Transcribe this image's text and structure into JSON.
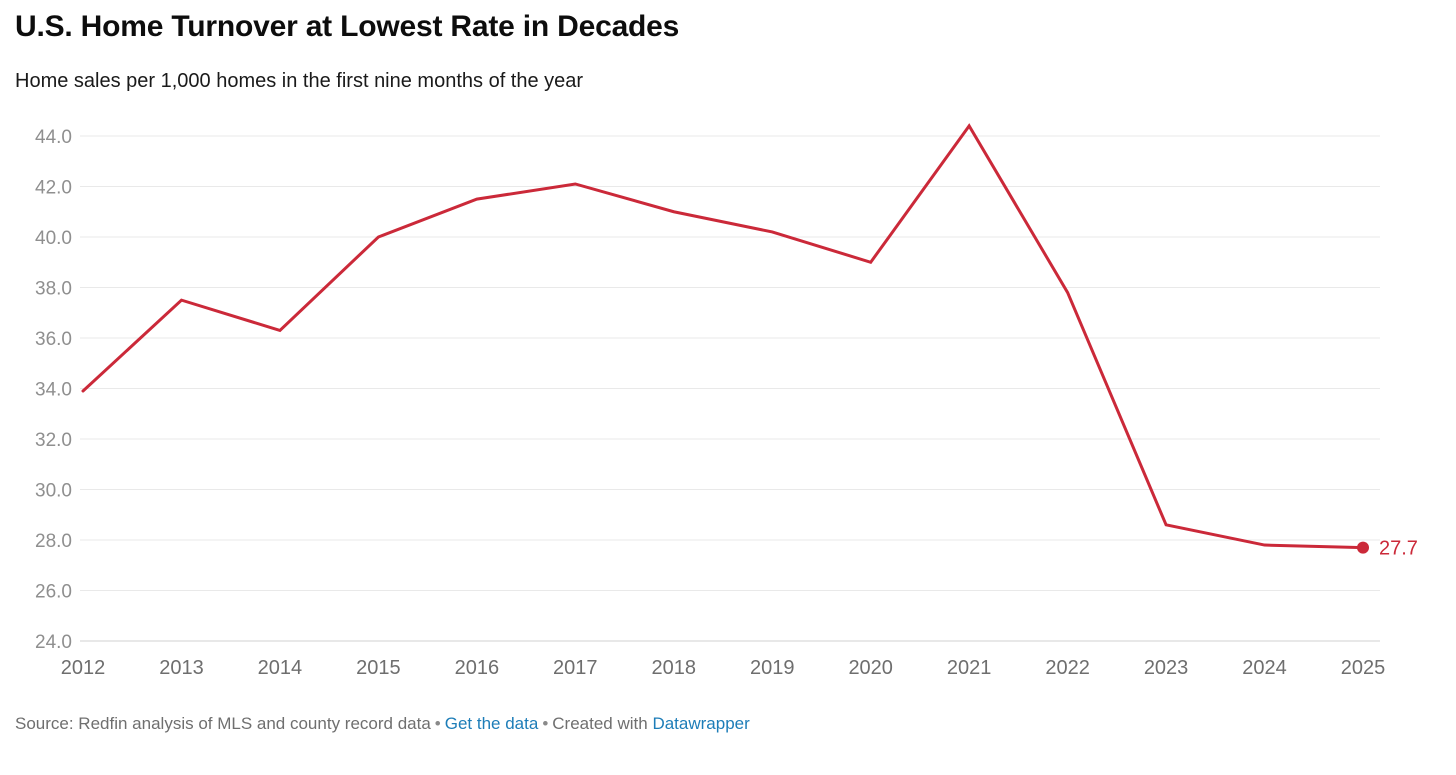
{
  "header": {
    "title": "U.S. Home Turnover at Lowest Rate in Decades",
    "subtitle": "Home sales per 1,000 homes in the first nine months of the year"
  },
  "chart_data": {
    "type": "line",
    "title": "U.S. Home Turnover at Lowest Rate in Decades",
    "subtitle": "Home sales per 1,000 homes in the first nine months of the year",
    "x": [
      2012,
      2013,
      2014,
      2015,
      2016,
      2017,
      2018,
      2019,
      2020,
      2021,
      2022,
      2023,
      2024,
      2025
    ],
    "series": [
      {
        "name": "Home sales per 1,000 homes",
        "values": [
          33.9,
          37.5,
          36.3,
          40.0,
          41.5,
          42.1,
          41.0,
          40.2,
          39.0,
          44.4,
          37.8,
          28.6,
          27.8,
          27.7
        ]
      }
    ],
    "end_label": "27.7",
    "xlabel": "",
    "ylabel": "",
    "ylim": [
      24.0,
      44.0
    ],
    "ytick_step": 2.0,
    "grid": "horizontal",
    "legend": "none",
    "marker_on_last_point": true
  },
  "colors": {
    "line_red": "#cb2939",
    "grid": "#e9e9e9",
    "baseline": "#d2d2d2",
    "y_tick_text": "#8f8f8f",
    "x_tick_text": "#6e6e6e",
    "title_text": "#0d0d0d",
    "footer_text": "#6f6f6f",
    "link_blue": "#1d7db8"
  },
  "footer": {
    "source_text": "Source: Redfin analysis of MLS and county record data",
    "separator": "•",
    "get_data_label": "Get the data",
    "created_with": "Created with",
    "datawrapper_label": "Datawrapper"
  }
}
